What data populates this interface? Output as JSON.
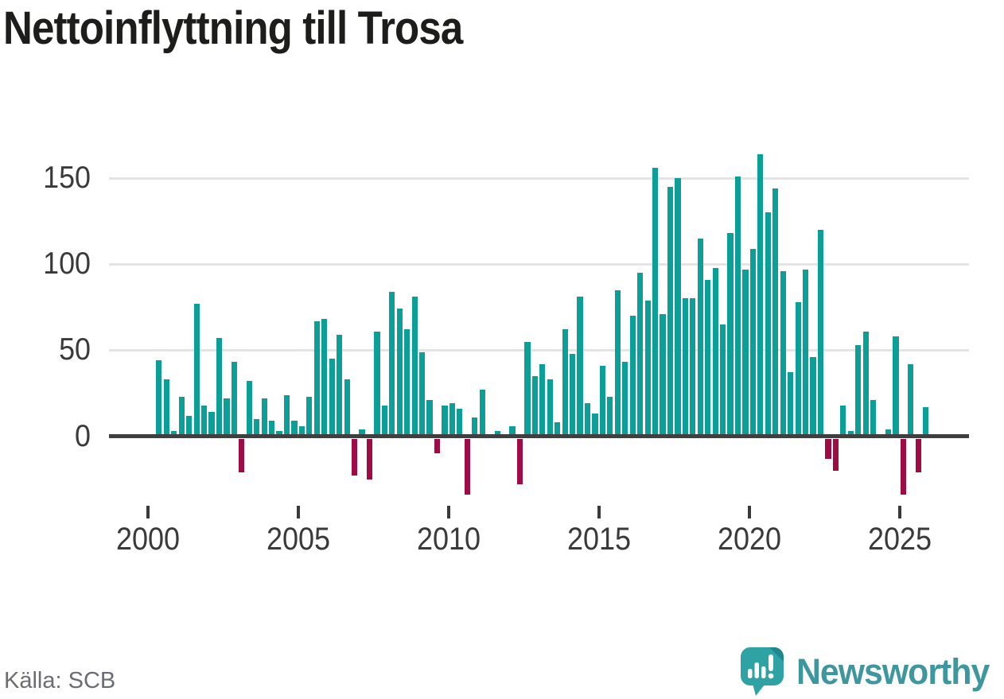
{
  "title": "Nettoinflyttning till Trosa",
  "source": "Källa: SCB",
  "branding": {
    "logo_text": "Newsworthy",
    "logo_icon": "bar-chart-speech-bubble-icon"
  },
  "colors": {
    "positive": "#0b9f97",
    "negative": "#9f0c44",
    "axis": "#3f3f3f",
    "grid": "#e4e4e4",
    "tick_text": "#3a3a3a",
    "muted_text": "#6c6c75",
    "brand": "#3e979e"
  },
  "chart_data": {
    "type": "bar",
    "title": "Nettoinflyttning till Trosa",
    "frequency": "quarterly",
    "start_quarter": "2000-Q2",
    "end_quarter": "2025-Q4",
    "xlabel": "",
    "ylabel": "",
    "x_tick_labels": [
      "2000",
      "2005",
      "2010",
      "2015",
      "2020",
      "2025"
    ],
    "y_tick_labels": [
      "150",
      "100",
      "50",
      "0"
    ],
    "ylim": [
      -45,
      170
    ],
    "grid": "horizontal",
    "legend": "none",
    "values": [
      44,
      33,
      3,
      23,
      12,
      77,
      18,
      14,
      57,
      22,
      43,
      -21,
      32,
      10,
      22,
      9,
      3,
      24,
      9,
      6,
      23,
      67,
      68,
      45,
      59,
      33,
      -23,
      4,
      -25,
      61,
      18,
      84,
      74,
      62,
      81,
      49,
      21,
      -10,
      18,
      19,
      16,
      -34,
      11,
      27,
      0,
      3,
      0,
      6,
      -28,
      55,
      35,
      42,
      33,
      8,
      62,
      48,
      81,
      19,
      13,
      41,
      23,
      85,
      43,
      70,
      95,
      79,
      156,
      71,
      145,
      150,
      80,
      80,
      115,
      91,
      98,
      65,
      118,
      151,
      97,
      109,
      164,
      130,
      144,
      96,
      37,
      78,
      97,
      46,
      120,
      -13,
      -20,
      18,
      3,
      53,
      61,
      21,
      0,
      4,
      58,
      -34,
      42,
      -21,
      17
    ]
  }
}
